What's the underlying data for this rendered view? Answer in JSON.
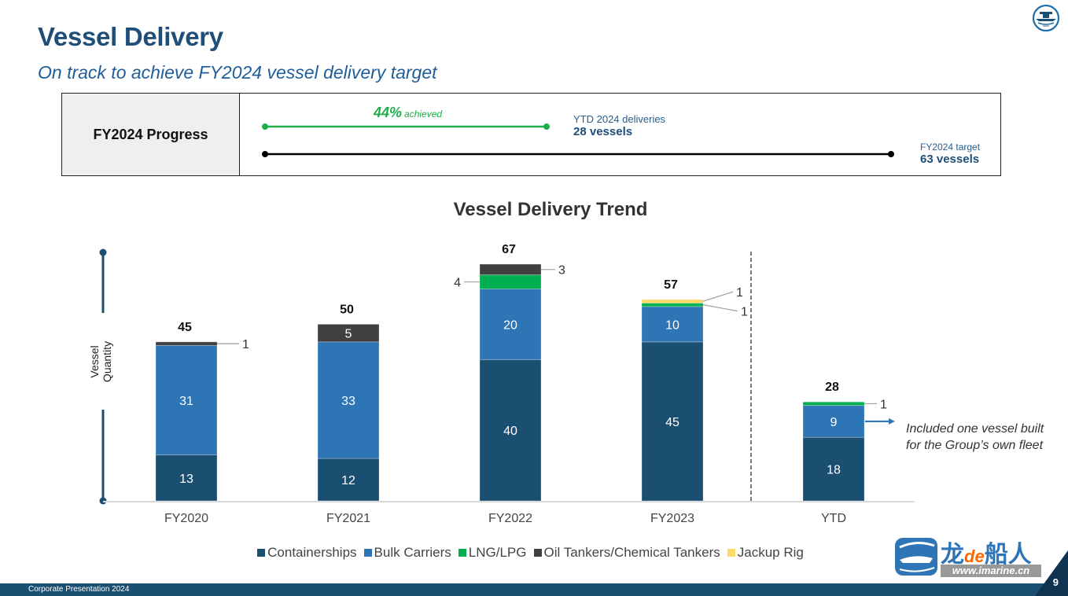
{
  "header": {
    "title": "Vessel Delivery",
    "subtitle": "On track to achieve FY2024 vessel delivery target",
    "logo_icon": "company-ship-emblem-icon"
  },
  "progress": {
    "label": "FY2024 Progress",
    "percent_text": "44%",
    "percent_suffix": "achieved",
    "percent_value": 44,
    "ytd_label": "YTD 2024 deliveries",
    "ytd_value": "28 vessels",
    "target_label": "FY2024 target",
    "target_value": "63 vessels",
    "colors": {
      "achieved": "#1fae4b",
      "track": "#000000"
    }
  },
  "legend": [
    {
      "label": "Containerships",
      "color": "#1b4f72"
    },
    {
      "label": "Bulk Carriers",
      "color": "#2e75b6"
    },
    {
      "label": "LNG/LPG",
      "color": "#00b050"
    },
    {
      "label": "Oil Tankers/Chemical Tankers",
      "color": "#404040"
    },
    {
      "label": "Jackup Rig",
      "color": "#ffd966"
    }
  ],
  "annotation": {
    "line1": "Included one vessel built",
    "line2": "for the Group’s own fleet"
  },
  "footer": {
    "text": "Corporate Presentation 2024",
    "page_number": "9"
  },
  "watermark": {
    "brand_a": "龙",
    "brand_de": "de",
    "brand_b": "船人",
    "url": "www.imarine.cn"
  },
  "chart_data": {
    "type": "bar",
    "stacked": true,
    "title": "Vessel Delivery Trend",
    "xlabel": "",
    "ylabel": "Vessel Quantity",
    "categories": [
      "FY2020",
      "FY2021",
      "FY2022",
      "FY2023",
      "YTD"
    ],
    "totals": [
      45,
      50,
      67,
      57,
      28
    ],
    "series": [
      {
        "name": "Containerships",
        "color": "#1b4f72",
        "values": [
          13,
          12,
          40,
          45,
          18
        ]
      },
      {
        "name": "Bulk Carriers",
        "color": "#2e75b6",
        "values": [
          31,
          33,
          20,
          10,
          9
        ]
      },
      {
        "name": "LNG/LPG",
        "color": "#00b050",
        "values": [
          0,
          0,
          4,
          1,
          1
        ]
      },
      {
        "name": "Oil Tankers/Chemical Tankers",
        "color": "#404040",
        "values": [
          1,
          5,
          3,
          0,
          0
        ]
      },
      {
        "name": "Jackup Rig",
        "color": "#ffd966",
        "values": [
          0,
          0,
          0,
          1,
          0
        ]
      }
    ],
    "ylim": [
      0,
      67
    ],
    "grid": false,
    "legend_position": "bottom",
    "separator_before": "YTD"
  }
}
